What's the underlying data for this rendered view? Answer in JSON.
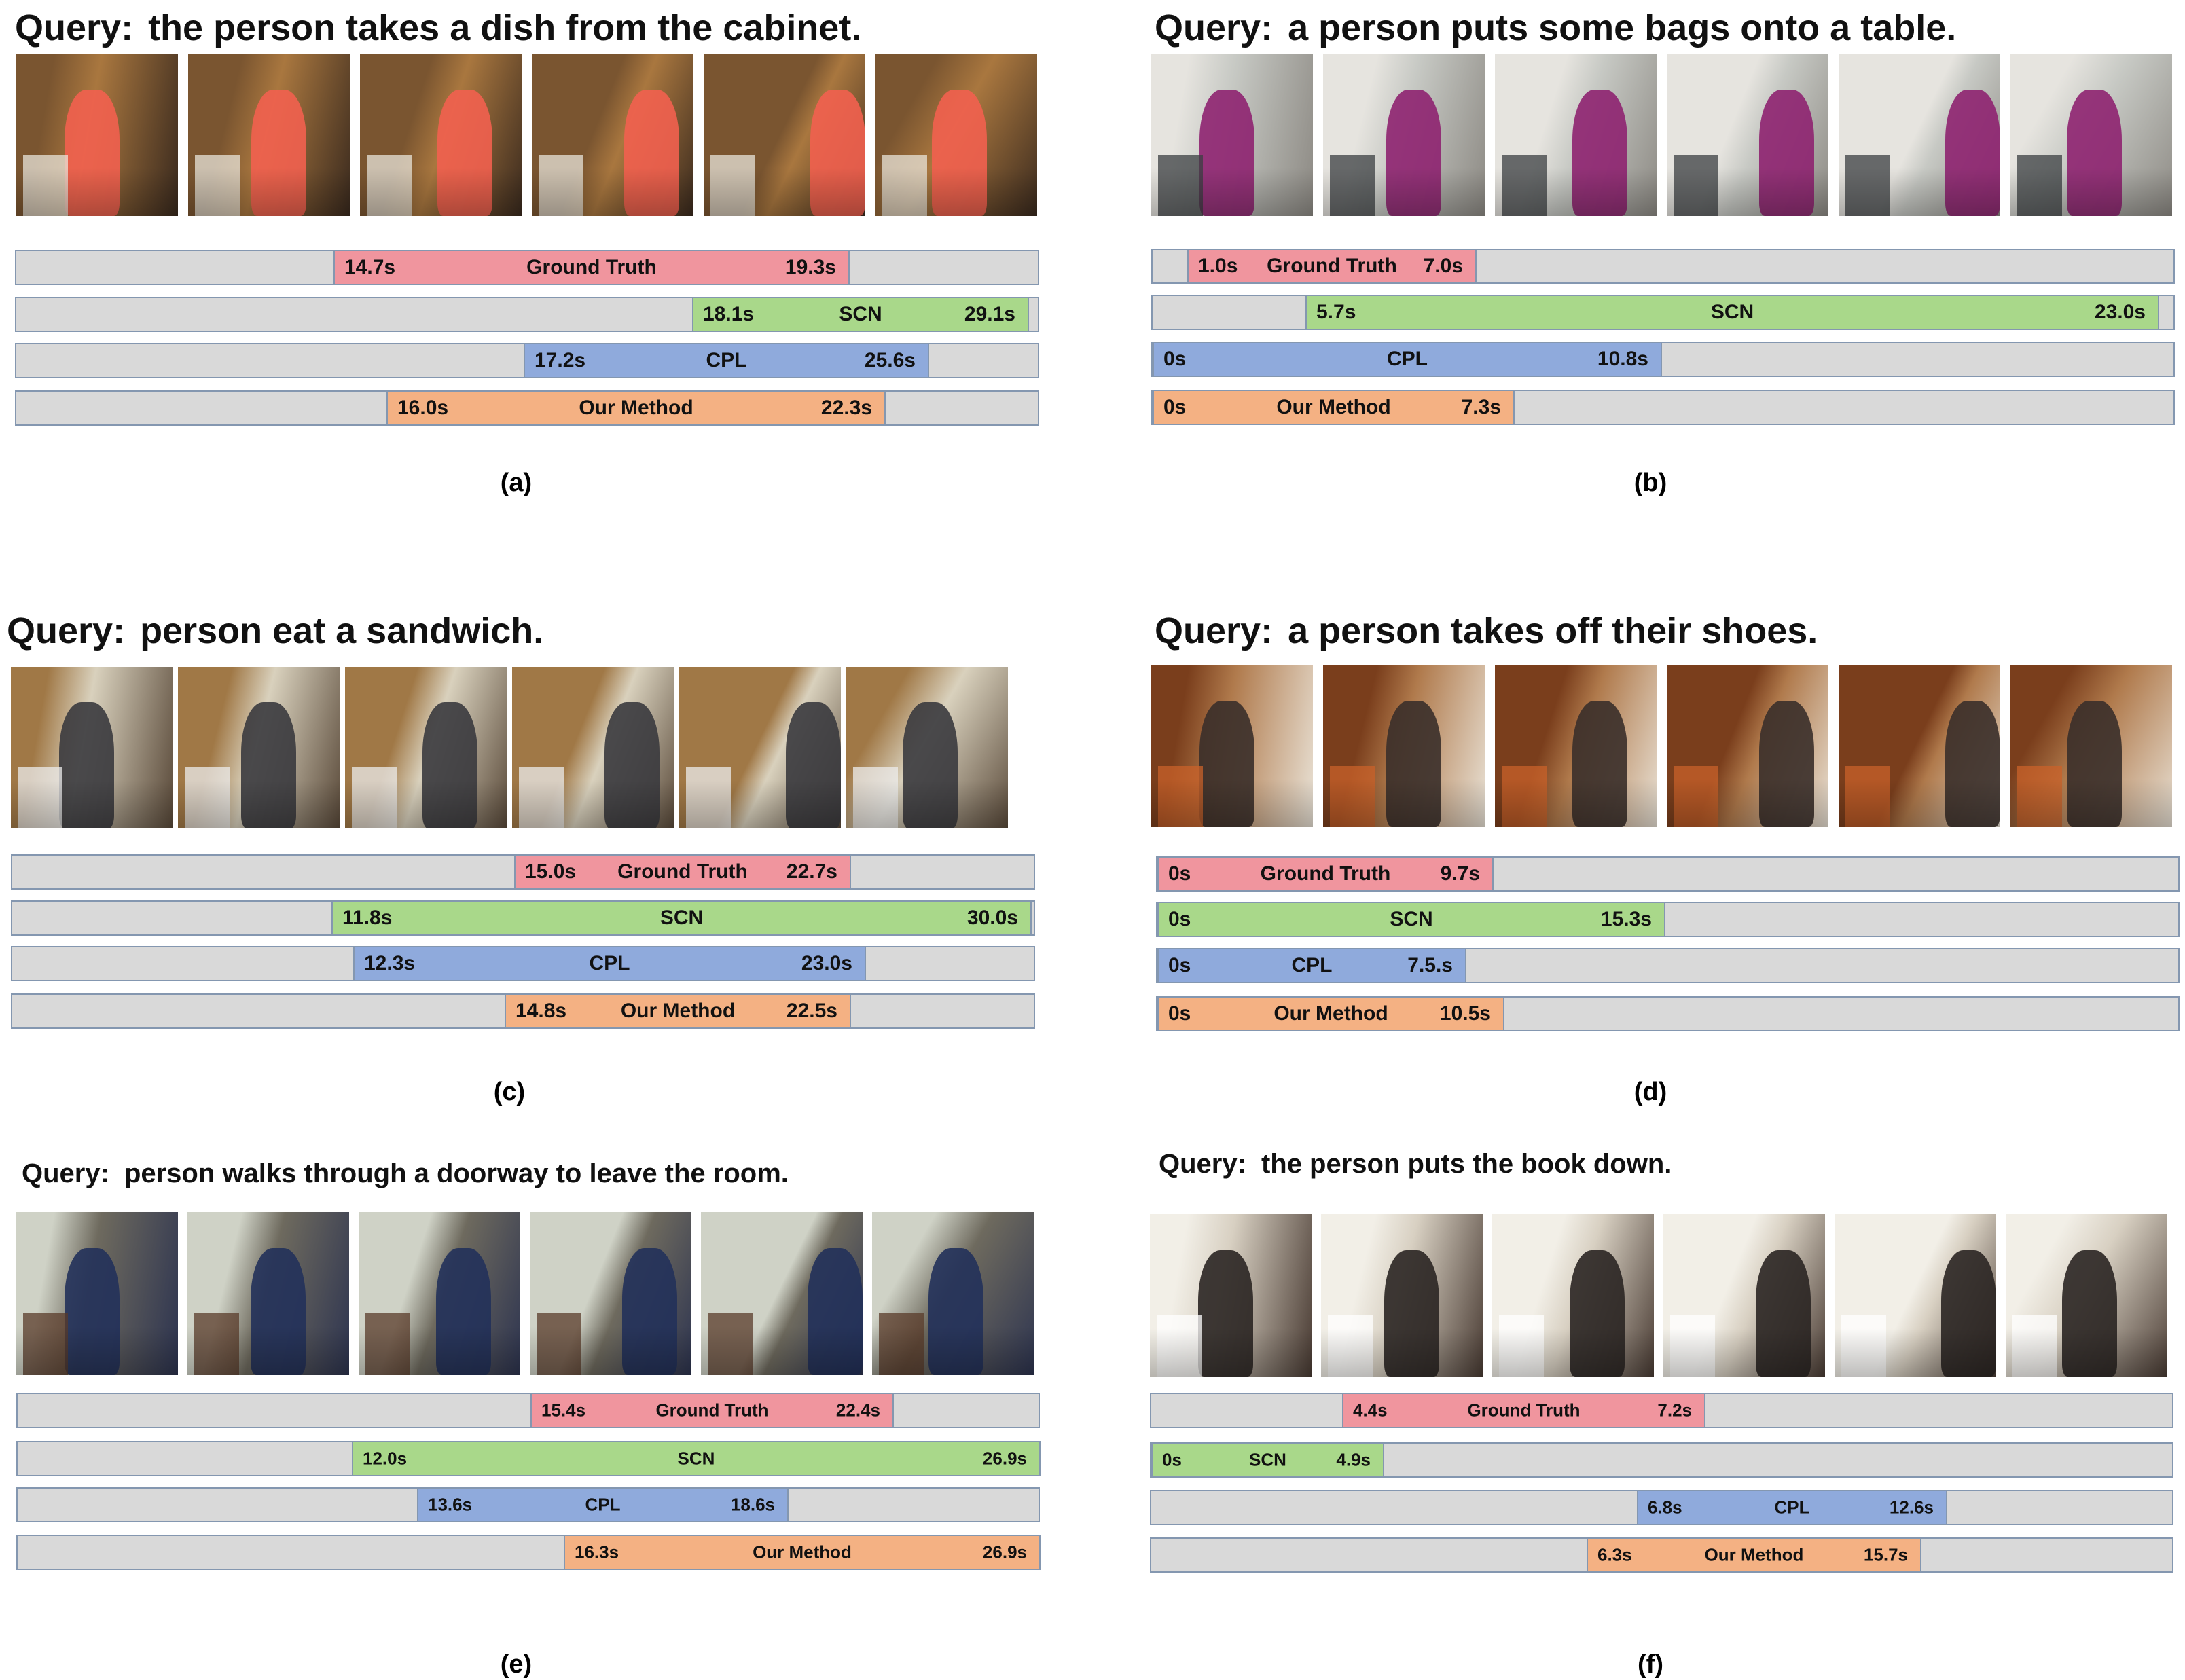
{
  "panels": [
    {
      "id": "a",
      "query_label": "Query:",
      "query_text": "the person takes a dish from the cabinet.",
      "caption": "(a)",
      "bars": [
        {
          "method": "Ground Truth",
          "start_label": "14.7s",
          "end_label": "19.3s"
        },
        {
          "method": "SCN",
          "start_label": "18.1s",
          "end_label": "29.1s"
        },
        {
          "method": "CPL",
          "start_label": "17.2s",
          "end_label": "25.6s"
        },
        {
          "method": "Our Method",
          "start_label": "16.0s",
          "end_label": "22.3s"
        }
      ]
    },
    {
      "id": "b",
      "query_label": "Query:",
      "query_text": "a person puts some bags onto a table.",
      "caption": "(b)",
      "bars": [
        {
          "method": "Ground Truth",
          "start_label": "1.0s",
          "end_label": "7.0s"
        },
        {
          "method": "SCN",
          "start_label": "5.7s",
          "end_label": "23.0s"
        },
        {
          "method": "CPL",
          "start_label": "0s",
          "end_label": "10.8s"
        },
        {
          "method": "Our Method",
          "start_label": "0s",
          "end_label": "7.3s"
        }
      ]
    },
    {
      "id": "c",
      "query_label": "Query:",
      "query_text": "person eat a sandwich.",
      "caption": "(c)",
      "bars": [
        {
          "method": "Ground Truth",
          "start_label": "15.0s",
          "end_label": "22.7s"
        },
        {
          "method": "SCN",
          "start_label": "11.8s",
          "end_label": "30.0s"
        },
        {
          "method": "CPL",
          "start_label": "12.3s",
          "end_label": "23.0s"
        },
        {
          "method": "Our Method",
          "start_label": "14.8s",
          "end_label": "22.5s"
        }
      ]
    },
    {
      "id": "d",
      "query_label": "Query:",
      "query_text": "a person takes off their shoes.",
      "caption": "(d)",
      "bars": [
        {
          "method": "Ground Truth",
          "start_label": "0s",
          "end_label": "9.7s"
        },
        {
          "method": "SCN",
          "start_label": "0s",
          "end_label": "15.3s"
        },
        {
          "method": "CPL",
          "start_label": "0s",
          "end_label": "7.5.s"
        },
        {
          "method": "Our Method",
          "start_label": "0s",
          "end_label": "10.5s"
        }
      ]
    },
    {
      "id": "e",
      "query_label": "Query:",
      "query_text": "person walks through a doorway to leave the room.",
      "caption": "(e)",
      "bars": [
        {
          "method": "Ground Truth",
          "start_label": "15.4s",
          "end_label": "22.4s"
        },
        {
          "method": "SCN",
          "start_label": "12.0s",
          "end_label": "26.9s"
        },
        {
          "method": "CPL",
          "start_label": "13.6s",
          "end_label": "18.6s"
        },
        {
          "method": "Our Method",
          "start_label": "16.3s",
          "end_label": "26.9s"
        }
      ]
    },
    {
      "id": "f",
      "query_label": "Query:",
      "query_text": "the person puts the book down.",
      "caption": "(f)",
      "bars": [
        {
          "method": "Ground Truth",
          "start_label": "4.4s",
          "end_label": "7.2s"
        },
        {
          "method": "SCN",
          "start_label": "0s",
          "end_label": "4.9s"
        },
        {
          "method": "CPL",
          "start_label": "6.8s",
          "end_label": "12.6s"
        },
        {
          "method": "Our Method",
          "start_label": "6.3s",
          "end_label": "15.7s"
        }
      ]
    }
  ]
}
